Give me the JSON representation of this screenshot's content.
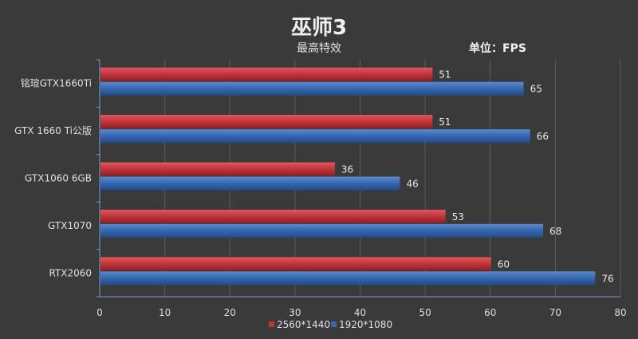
{
  "chart_data": {
    "type": "bar",
    "orientation": "horizontal",
    "title": "巫师3",
    "subtitle": "最高特效",
    "unit_label": "单位：FPS",
    "categories": [
      "铭瑄GTX1660Ti",
      "GTX 1660 Ti公版",
      "GTX1060 6GB",
      "GTX1070",
      "RTX2060"
    ],
    "series": [
      {
        "name": "2560*1440",
        "color": "#c0343a",
        "values": [
          51,
          51,
          36,
          53,
          60
        ]
      },
      {
        "name": "1920*1080",
        "color": "#3566b0",
        "values": [
          65,
          66,
          46,
          68,
          76
        ]
      }
    ],
    "xlim": [
      0,
      80
    ],
    "xticks": [
      0,
      10,
      20,
      30,
      40,
      50,
      60,
      70,
      80
    ],
    "grid": true,
    "legend_position": "bottom"
  }
}
